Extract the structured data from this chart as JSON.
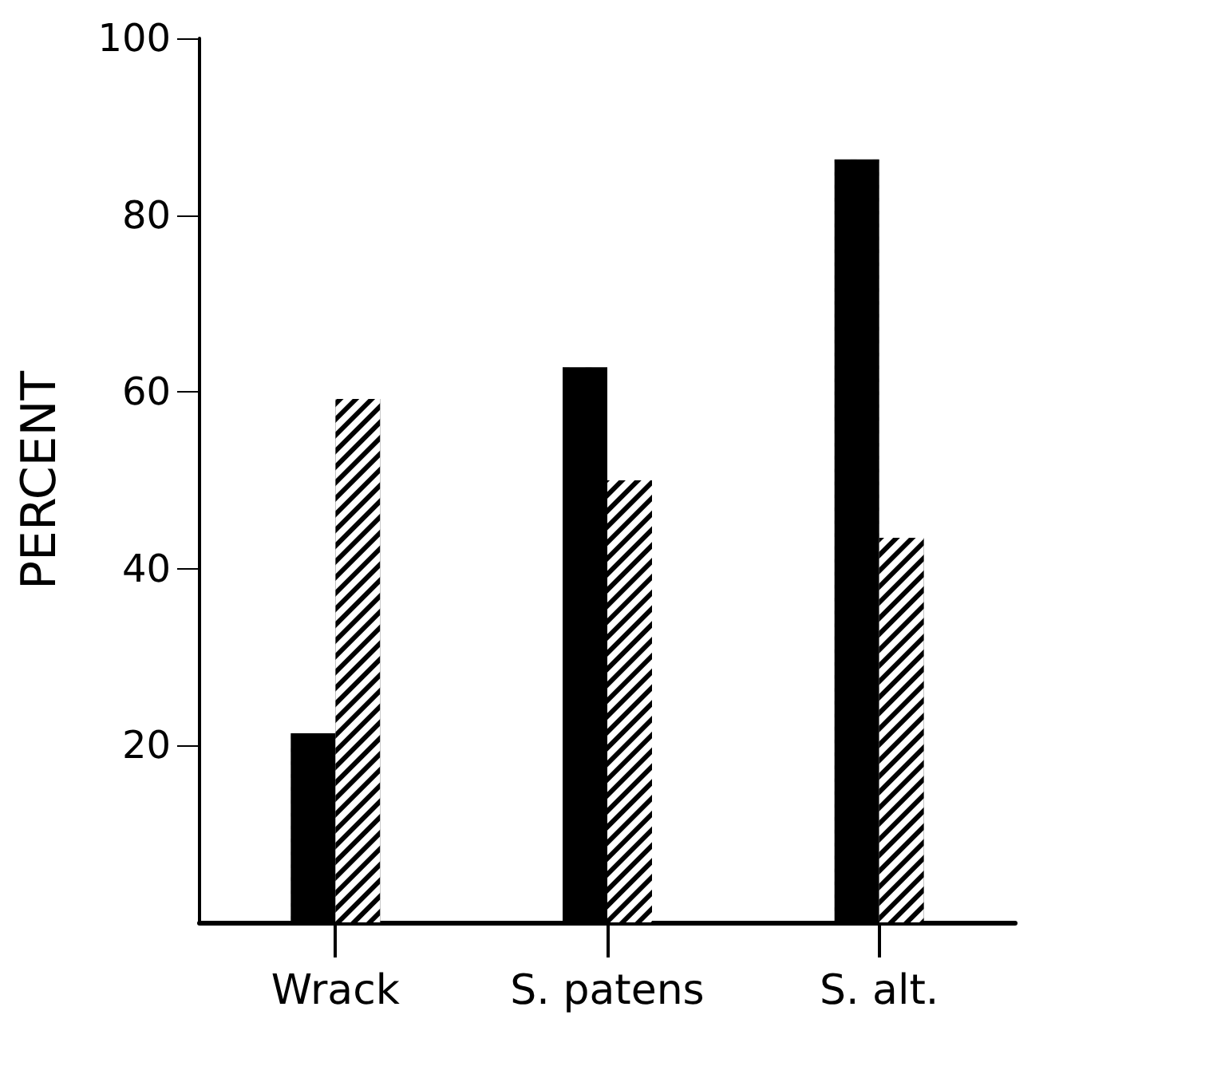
{
  "chart_data": {
    "type": "bar",
    "ylabel": "PERCENT",
    "categories": [
      "Wrack",
      "S. patens",
      "S. alt."
    ],
    "series": [
      {
        "color": "#000000",
        "values": [
          21.4,
          62.8,
          86.3
        ]
      },
      {
        "color": "#000000",
        "values": [
          59.2,
          50.0,
          43.5
        ]
      }
    ],
    "ylim": [
      0,
      100
    ],
    "yticks": [
      20,
      40,
      60,
      80,
      100
    ],
    "grid": false
  }
}
